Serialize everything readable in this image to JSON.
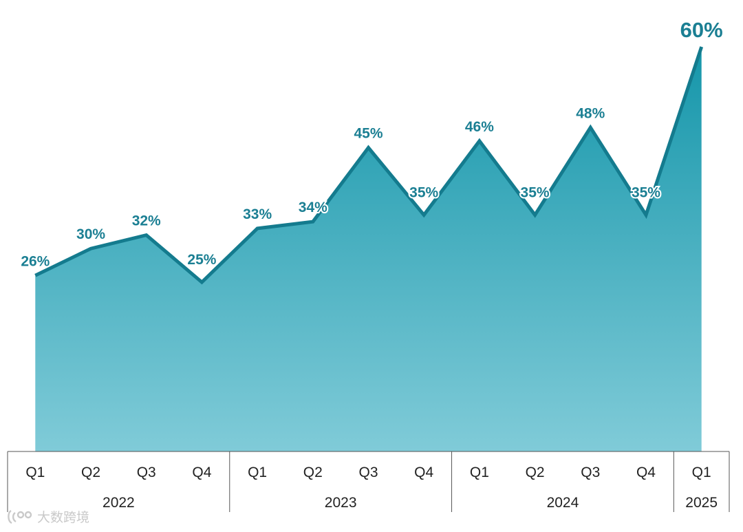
{
  "chart_data": {
    "type": "area",
    "categories": [
      "Q1",
      "Q2",
      "Q3",
      "Q4",
      "Q1",
      "Q2",
      "Q3",
      "Q4",
      "Q1",
      "Q2",
      "Q3",
      "Q4",
      "Q1"
    ],
    "groups": [
      {
        "label": "2022",
        "count": 4
      },
      {
        "label": "2023",
        "count": 4
      },
      {
        "label": "2024",
        "count": 4
      },
      {
        "label": "2025",
        "count": 1
      }
    ],
    "values": [
      26,
      30,
      32,
      25,
      33,
      34,
      45,
      35,
      46,
      35,
      48,
      35,
      60
    ],
    "data_labels": [
      "26%",
      "30%",
      "32%",
      "25%",
      "33%",
      "34%",
      "45%",
      "35%",
      "46%",
      "35%",
      "48%",
      "35%",
      "60%"
    ],
    "ylim": [
      0,
      63
    ],
    "title": "",
    "xlabel": "",
    "ylabel": "",
    "grid": false,
    "colors": {
      "line": "#147b8e",
      "fill_top": "#1596aa",
      "fill_bottom": "#80cbd8",
      "label": "#1b7f93",
      "axis": "#555555"
    }
  },
  "watermark": {
    "text": "大数跨境",
    "icon": "brand-logo-icon"
  }
}
